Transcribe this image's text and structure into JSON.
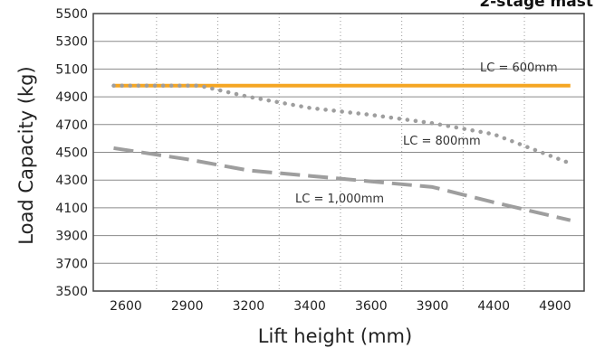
{
  "chart_data": {
    "type": "line",
    "title": "2-stage mast",
    "xlabel": "Lift height (mm)",
    "ylabel": "Load Capacity (kg)",
    "x_categories": [
      "2600",
      "2900",
      "3200",
      "3400",
      "3600",
      "3900",
      "4400",
      "4900"
    ],
    "y_ticks": [
      3500,
      3700,
      3900,
      4100,
      4300,
      4500,
      4700,
      4900,
      5100,
      5300,
      5500
    ],
    "ylim": [
      3500,
      5500
    ],
    "grid": {
      "horizontal": true,
      "vertical": "dotted"
    },
    "series": [
      {
        "name": "LC = 600mm",
        "color": "#f5a623",
        "style": "solid",
        "points": [
          [
            -0.2,
            4980
          ],
          [
            7.25,
            4980
          ]
        ]
      },
      {
        "name": "LC = 800mm",
        "color": "#9e9e9e",
        "style": "dotted",
        "points": [
          [
            -0.2,
            4980
          ],
          [
            1.2,
            4980
          ],
          [
            2.0,
            4900
          ],
          [
            3.0,
            4820
          ],
          [
            4.0,
            4770
          ],
          [
            5.0,
            4710
          ],
          [
            6.0,
            4630
          ],
          [
            7.25,
            4420
          ]
        ]
      },
      {
        "name": "LC = 1,000mm",
        "color": "#9e9e9e",
        "style": "dashed",
        "points": [
          [
            -0.2,
            4530
          ],
          [
            1.0,
            4450
          ],
          [
            2.0,
            4370
          ],
          [
            3.0,
            4330
          ],
          [
            4.0,
            4290
          ],
          [
            5.0,
            4250
          ],
          [
            6.0,
            4140
          ],
          [
            7.25,
            4010
          ]
        ]
      }
    ]
  }
}
